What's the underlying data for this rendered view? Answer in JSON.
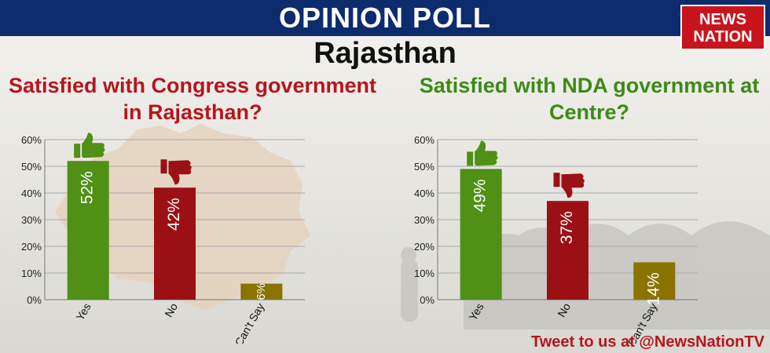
{
  "header": {
    "title": "OPINION POLL",
    "subtitle": "Rajasthan",
    "logo_line1": "NEWS",
    "logo_line2": "NATION"
  },
  "footer": {
    "text": "Tweet to us at @NewsNationTV"
  },
  "colors": {
    "header_bg": "#0d2c6e",
    "red": "#9b1015",
    "green": "#4f9015",
    "olive": "#8a7400"
  },
  "chart_data": [
    {
      "type": "bar",
      "title": "Satisfied with Congress government in Rajasthan?",
      "title_color": "#b5161e",
      "categories": [
        "Yes",
        "No",
        "Can't Say"
      ],
      "values": [
        52,
        42,
        6
      ],
      "value_labels": [
        "52%",
        "42%",
        "6%"
      ],
      "bar_colors": [
        "#4f9015",
        "#9b1015",
        "#8a7400"
      ],
      "icons": [
        "thumbs-up-icon",
        "thumbs-down-icon",
        ""
      ],
      "yticks": [
        "0%",
        "10%",
        "20%",
        "30%",
        "40%",
        "50%",
        "60%"
      ],
      "ylim": [
        0,
        60
      ],
      "grid": true
    },
    {
      "type": "bar",
      "title": "Satisfied with NDA government at Centre?",
      "title_color": "#3d8a18",
      "categories": [
        "Yes",
        "No",
        "Can't Say"
      ],
      "values": [
        49,
        37,
        14
      ],
      "value_labels": [
        "49%",
        "37%",
        "14%"
      ],
      "bar_colors": [
        "#4f9015",
        "#9b1015",
        "#8a7400"
      ],
      "icons": [
        "thumbs-up-icon",
        "thumbs-down-icon",
        ""
      ],
      "yticks": [
        "0%",
        "10%",
        "20%",
        "30%",
        "40%",
        "50%",
        "60%"
      ],
      "ylim": [
        0,
        60
      ],
      "grid": true
    }
  ]
}
